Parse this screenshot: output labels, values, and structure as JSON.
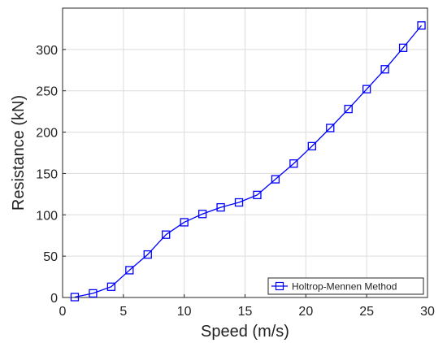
{
  "chart_data": {
    "type": "line",
    "title": "",
    "xlabel": "Speed (m/s)",
    "ylabel": "Resistance (kN)",
    "xlim": [
      0,
      30
    ],
    "ylim": [
      0,
      350
    ],
    "xticks": [
      0,
      5,
      10,
      15,
      20,
      25,
      30
    ],
    "yticks": [
      0,
      50,
      100,
      150,
      200,
      250,
      300
    ],
    "grid": true,
    "legend_position": "bottom-right",
    "series": [
      {
        "name": "Holtrop-Mennen Method",
        "color": "#0000ff",
        "marker": "square",
        "x": [
          1,
          2.5,
          4,
          5.5,
          7,
          8.5,
          10,
          11.5,
          13,
          14.5,
          16,
          17.5,
          19,
          20.5,
          22,
          23.5,
          25,
          26.5,
          28,
          29.5
        ],
        "y": [
          0.5,
          5,
          13,
          33,
          52,
          76,
          91,
          101,
          109,
          115,
          124,
          143,
          162,
          183,
          205,
          228,
          252,
          276,
          302,
          329
        ]
      }
    ]
  }
}
